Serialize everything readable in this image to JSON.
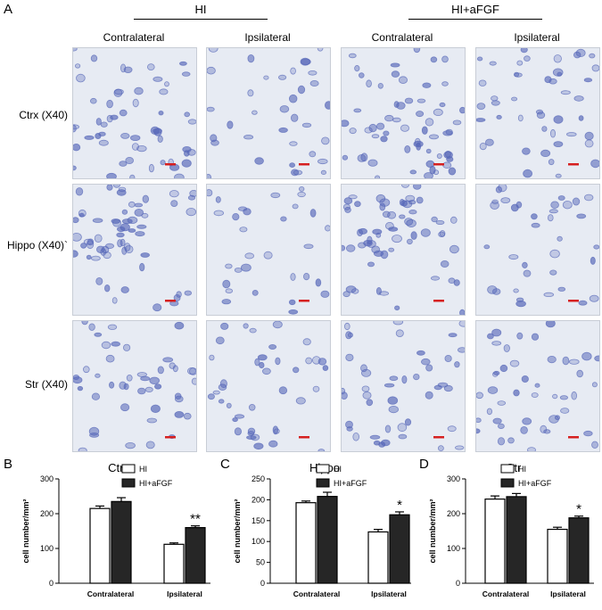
{
  "figure": {
    "panel_a_letter": "A",
    "groups": [
      {
        "label": "HI"
      },
      {
        "label": "HI+aFGF"
      }
    ],
    "columns": [
      "Contralateral",
      "Ipsilateral",
      "Contralateral",
      "Ipsilateral"
    ],
    "rows": [
      {
        "label": "Ctrx (X40)"
      },
      {
        "label": "Hippo (X40)`"
      },
      {
        "label": "Str (X40)"
      }
    ],
    "scale_bar_color": "#d62020",
    "stain_color": "#5566b8"
  },
  "chart_data": [
    {
      "panel_letter": "B",
      "type": "bar",
      "title": "Ctrx",
      "ylabel": "cell number/mm²",
      "xlabel": "",
      "ylim": [
        0,
        300
      ],
      "yticks": [
        0,
        100,
        200,
        300
      ],
      "categories": [
        "Contralateral",
        "Ipsilateral"
      ],
      "series": [
        {
          "name": "HI",
          "values": [
            215,
            112
          ],
          "errors": [
            7,
            4
          ],
          "fill": "#ffffff"
        },
        {
          "name": "HI+aFGF",
          "values": [
            235,
            160
          ],
          "errors": [
            11,
            5
          ],
          "fill": "#262626"
        }
      ],
      "annotations": [
        {
          "category": 1,
          "series": 1,
          "text": "**"
        }
      ],
      "legend": "top-right"
    },
    {
      "panel_letter": "C",
      "type": "bar",
      "title": "Hippo",
      "ylabel": "cell number/mm²",
      "xlabel": "",
      "ylim": [
        0,
        250
      ],
      "yticks": [
        0,
        50,
        100,
        150,
        200,
        250
      ],
      "categories": [
        "Contralateral",
        "Ipsilateral"
      ],
      "series": [
        {
          "name": "HI",
          "values": [
            193,
            123
          ],
          "errors": [
            4,
            6
          ],
          "fill": "#ffffff"
        },
        {
          "name": "HI+aFGF",
          "values": [
            208,
            164
          ],
          "errors": [
            10,
            7
          ],
          "fill": "#262626"
        }
      ],
      "annotations": [
        {
          "category": 1,
          "series": 1,
          "text": "*"
        }
      ],
      "legend": "top-right"
    },
    {
      "panel_letter": "D",
      "type": "bar",
      "title": "Str",
      "ylabel": "cell number/mm²",
      "xlabel": "",
      "ylim": [
        0,
        300
      ],
      "yticks": [
        0,
        100,
        200,
        300
      ],
      "categories": [
        "Contralateral",
        "Ipsilateral"
      ],
      "series": [
        {
          "name": "HI",
          "values": [
            242,
            155
          ],
          "errors": [
            9,
            6
          ],
          "fill": "#ffffff"
        },
        {
          "name": "HI+aFGF",
          "values": [
            249,
            188
          ],
          "errors": [
            9,
            5
          ],
          "fill": "#262626"
        }
      ],
      "annotations": [
        {
          "category": 1,
          "series": 1,
          "text": "*"
        }
      ],
      "legend": "top-right"
    }
  ]
}
